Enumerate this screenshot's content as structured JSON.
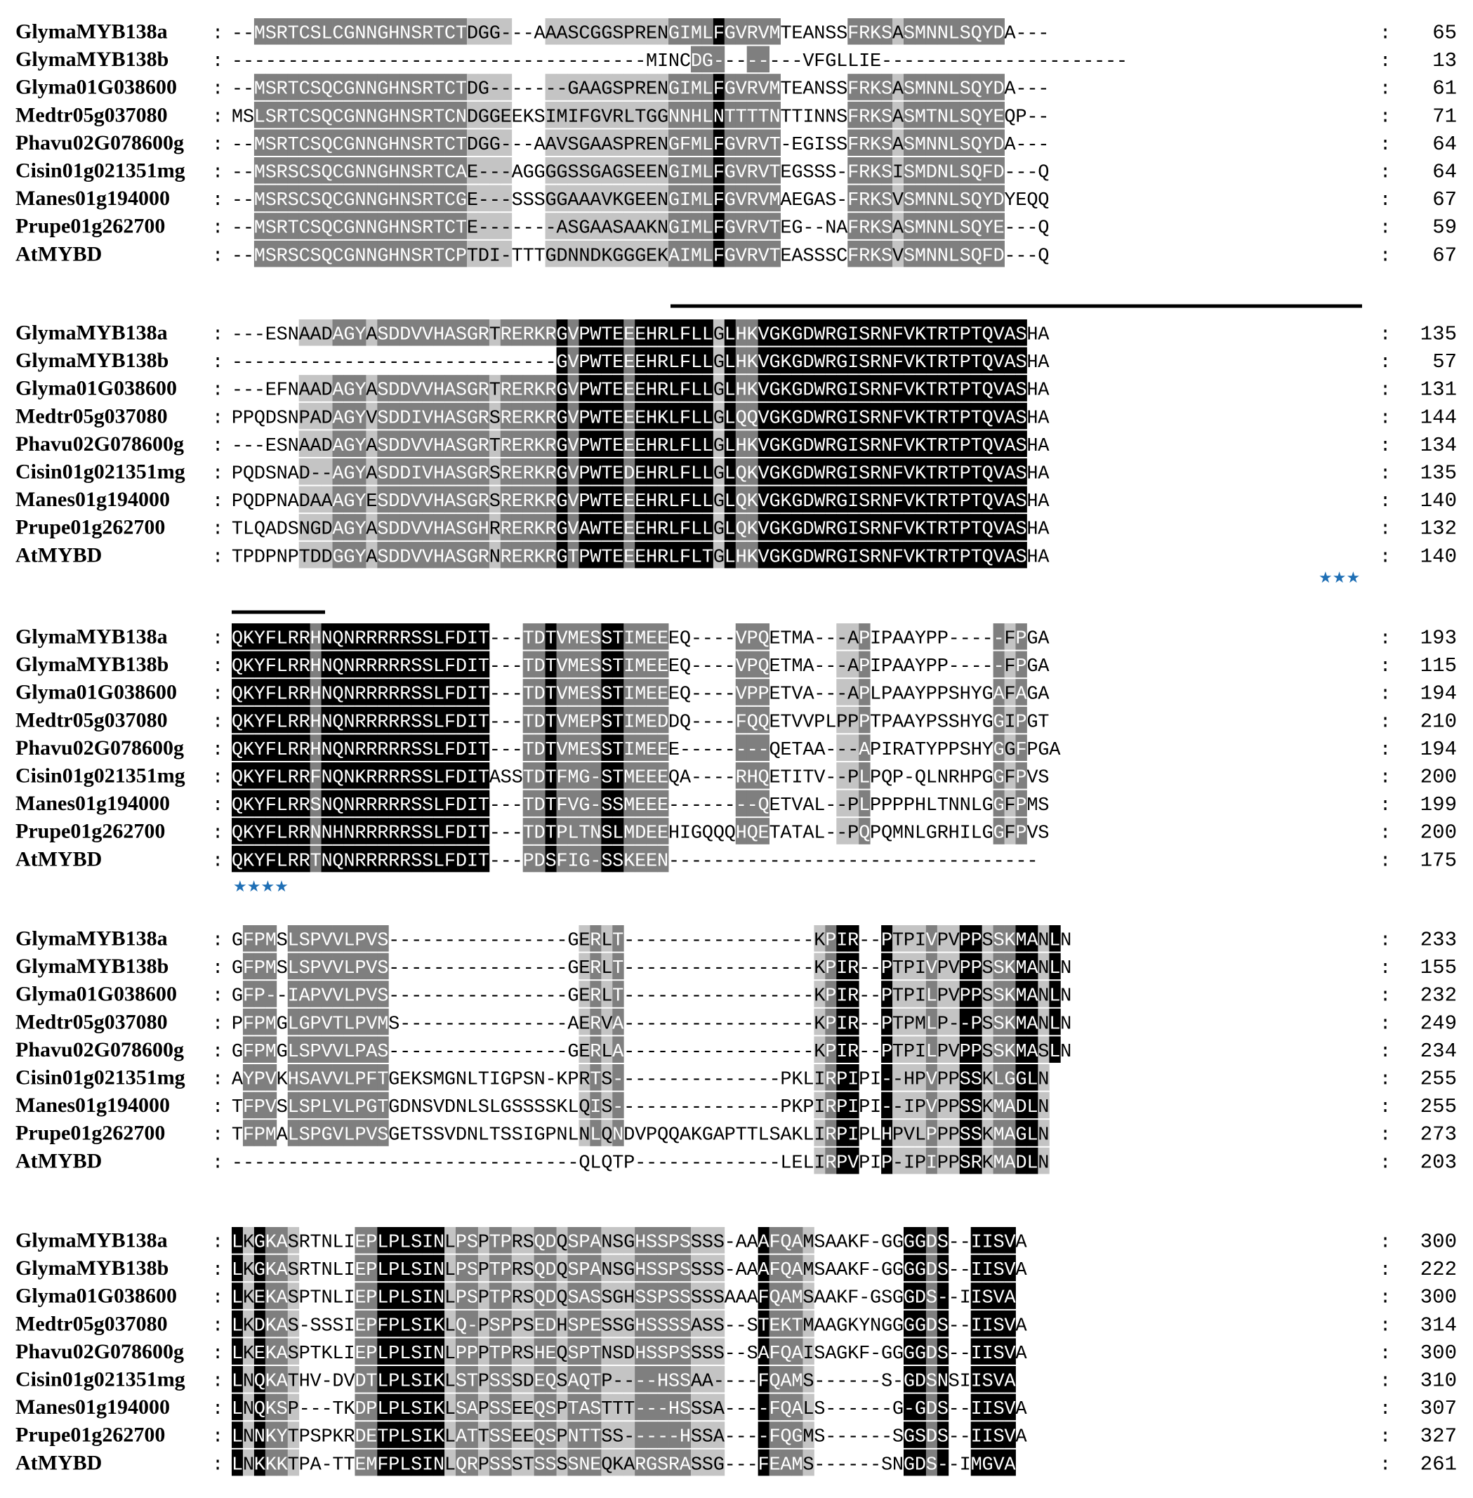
{
  "figure": "multiple-sequence-alignment",
  "colors": {
    "c0": "#ffffff",
    "c1": "#c4c4c4",
    "c2": "#7f7f7f",
    "c3": "#000000",
    "star": "#1f6fb5",
    "bar": "#000000"
  },
  "blocks": [
    {
      "start_col": 0,
      "rows": [
        {
          "name": "GlymaMYB138a",
          "seq": "--MSRTCSLCGNNGHNSRTCTDGG---AAASCGGSPRENGIMLFGVRVMTEANSSFRKSASMNNLSQYDA---",
          "end": "65"
        },
        {
          "name": "GlymaMYB138b",
          "seq": "-------------------------------------MINCDG--------VFGLLIE----------------------",
          "end": "13"
        },
        {
          "name": "Glyma01G038600",
          "seq": "--MSRTCSQCGNNGHNSRTCTDG-------GAAGSPRENGIMLFGVRVMTEANSSFRKSASMNNLSQYDA---",
          "end": "61"
        },
        {
          "name": "Medtr05g037080",
          "seq": "MSLSRTCSQCGNNGHNSRTCNDGGEEKSIMIFGVRLTGGNNHLNTTTTNTTINNSFRKSASMTNLSQYEQP--",
          "end": "71"
        },
        {
          "name": "Phavu02G078600g",
          "seq": "--MSRTCSQCGNNGHNSRTCTDGG---AAVSGAASPRENGFMLFGVRVT-EGISSFRKSASMNNLSQYDA---",
          "end": "64"
        },
        {
          "name": "Cisin01g021351mg",
          "seq": "--MSRSCSQCGNNGHNSRTCAE---AGGGGSSGAGSEENGIMLFGVRVTEGSSS-FRKSISMDNLSQFD---Q",
          "end": "64"
        },
        {
          "name": "Manes01g194000",
          "seq": "--MSRSCSQCGNNGHNSRTCGE---SSSGGAAAVKGEENGIMLFGVRVMAEGAS-FRKSVSMNNLSQYDYEQQ",
          "end": "67"
        },
        {
          "name": "Prupe01g262700",
          "seq": "--MSRTCSQCGNNGHNSRTCTE-------ASGAASAAKNGIMLFGVRVTEG--NAFRKSASMNNLSQYE---Q",
          "end": "59"
        },
        {
          "name": "AtMYBD",
          "seq": "--MSRSCSQCGNNGHNSRTCPTDI-TTTGDNNDKGGGEKAIMLFGVRVTEASSSCFRKSVSMNNLSQFD---Q",
          "end": "67"
        }
      ],
      "shade": [
        "0022222222222222222221111000111111111112222322222000000222212222222220000",
        "0000000000000000000000000000000000000000022200220000000000000000000000000",
        "0022222222222222222221111000111111111112222322222000000222212222222220000",
        "0022222222222222222221111000111111111112222322222000000222212222222220000",
        "0022222222222222222221111000111111111112222322222000000222212222222220000",
        "0022222222222222222221111000111111111112222322222000000222212222222220000",
        "0022222222222222222221111000111111111112222322222000000222212222222220000",
        "0022222222222222222221111000111111111112222322222000000222212222222220000",
        "0022222222222222222221111000111111111112222322222000000222212222222220000"
      ]
    },
    {
      "start_col": 0,
      "rows": [
        {
          "name": "GlymaMYB138a",
          "seq": "---ESNAADAGYASDDVVHASGRTRERKRGVPWTEEEHRLFLLGLHKVGKGDWRGISRNFVKTRTPTQVASHA",
          "end": "135"
        },
        {
          "name": "GlymaMYB138b",
          "seq": "-----------------------------GVPWTEEEHRLFLLGLHKVGKGDWRGISRNFVKTRTPTQVASHA",
          "end": "57"
        },
        {
          "name": "Glyma01G038600",
          "seq": "---EFNAADAGYASDDVVHASGRTRERKRGVPWTEEEHRLFLLGLHKVGKGDWRGISRNFVKTRTPTQVASHA",
          "end": "131"
        },
        {
          "name": "Medtr05g037080",
          "seq": "PPQDSNPADAGYVSDDIVHASGRSRERKRGVPWTEEEHKLFLLGLQQVGKGDWRGISRNFVKTRTPTQVASHA",
          "end": "144"
        },
        {
          "name": "Phavu02G078600g",
          "seq": "---ESNAADAGYASDDVVHASGRTRERKRGVPWTEEEHRLFLLGLHKVGKGDWRGISRNFVKTRTPTQVASHA",
          "end": "134"
        },
        {
          "name": "Cisin01g021351mg",
          "seq": "PQDSNAD--AGYASDDIVHASGRSRERKRGVPWTEDEHRLFLLGLQKVGKGDWRGISRNFVKTRTPTQVASHA",
          "end": "135"
        },
        {
          "name": "Manes01g194000",
          "seq": "PQDPNADAAAGYESDDVVHASGRSRERKRGVPWTEEEHRLFLLGLQKVGKGDWRGISRNFVKTRTPTQVASHA",
          "end": "140"
        },
        {
          "name": "Prupe01g262700",
          "seq": "TLQADSNGDAGYASDDVVHASGHRRERKRGVAWTEEEHRLFLLGLQKVGKGDWRGISRNFVKTRTPTQVASHA",
          "end": "132"
        },
        {
          "name": "AtMYBD",
          "seq": "TPDPNPTDDGGYASDDVVHASGRNRERKRGTPWTEEEHRLFLTGLHKVGKGDWRGISRNFVKTRTPTQVASHA",
          "end": "140"
        }
      ],
      "shade": [
        "00000011122212222222222122222323333233333331322333333333333333333333333",
        "00000000000000000000000000000323333233333331322333333333333333333333333",
        "00000011122212222222222122222323333233333331322333333333333333333333333",
        "00000011122212222222222122222323333233333331322333333333333333333333333",
        "00000011122212222222222122222323333233333331322333333333333333333333333",
        "00000011122212222222222122222323333233333331322333333333333333333333333",
        "00000011122212222222222122222323333233333331322333333333333333333333333",
        "00000011122212222222222122222323333233333331322333333333333333333333333",
        "00000011122212222222222122222323333233333331322333333333333333333333333"
      ],
      "stars": {
        "text": "★★★"
      }
    },
    {
      "start_col": 0,
      "rows": [
        {
          "name": "GlymaMYB138a",
          "seq": "QKYFLRRHNQNRRRRRSSLFDIT---TDTVMESSTIMEEEQ----VPQETMA---APIPAAYPP-----FPGA",
          "end": "193"
        },
        {
          "name": "GlymaMYB138b",
          "seq": "QKYFLRRHNQNRRRRRSSLFDIT---TDTVMESSTIMEEEQ----VPQETMA---APIPAAYPP-----FPGA",
          "end": "115"
        },
        {
          "name": "Glyma01G038600",
          "seq": "QKYFLRRHNQNRRRRRSSLFDIT---TDTVMESSTIMEEEQ----VPPETVA---APLPAAYPPSHYGAFAGA",
          "end": "194"
        },
        {
          "name": "Medtr05g037080",
          "seq": "QKYFLRRHNQNRRRRRSSLFDIT---TDTVMEPSTIMEDDQ----FQQETVVPLPPPTPAAYPSSHYGGIPGT",
          "end": "210"
        },
        {
          "name": "Phavu02G078600g",
          "seq": "QKYFLRRHNQNRRRRRSSLFDIT---TDTVMESSTIMEEE--------QETAA---APIRATYPPSHYGGFPGA",
          "end": "194"
        },
        {
          "name": "Cisin01g021351mg",
          "seq": "QKYFLRRFNQNKRRRRSSLFDITASSTDTFMG-STMEEEQA----RHQETITV--PLPQP-QLNRHPGGFPVS",
          "end": "200"
        },
        {
          "name": "Manes01g194000",
          "seq": "QKYFLRRSNQNRRRRRSSLFDIT---TDTFVG-SSMEEE--------QETVAL--PLPPPPHLTNNLGGFPMS",
          "end": "199"
        },
        {
          "name": "Prupe01g262700",
          "seq": "QKYFLRRNNHNRRRRRSSLFDIT---TDTPLTNSLMDEEHIGQQQHQETATAL--PQPQMNLGRHILGGFPVS",
          "end": "200"
        },
        {
          "name": "AtMYBD",
          "seq": "QKYFLRRTNQNRRRRRSSLFDIT---PDSFIG-SSKEEN---------------------------------",
          "end": "175"
        }
      ],
      "shade": [
        "3333333233333333333333300022322223322220000002220000001120000000000021200",
        "3333333233333333333333300022322223322220000002220000001120000000000021200",
        "3333333233333333333333300022322223322220000002220000001120000000000021200",
        "3333333233333333333333300022322223322220000002220000001120000000000021200",
        "3333333233333333333333300022322223322220000002220000001120000000000021200",
        "3333333233333333333333300022322223322220000002220000001120000000000021200",
        "3333333233333333333333300022322223322220000002220000001120000000000021200",
        "3333333233333333333333300022322223322220000002220000001120000000000021200",
        "3333333233333333333333300022322223322220000000000000000000000000000000000"
      ],
      "stars": {
        "text": "★★★★"
      }
    },
    {
      "start_col": 0,
      "rows": [
        {
          "name": "GlymaMYB138a",
          "seq": "GFPMSLSPVVLPVS----------------GERLT-----------------KPIR--PTPIVPVPPSSKMANLN",
          "end": "233"
        },
        {
          "name": "GlymaMYB138b",
          "seq": "GFPMSLSPVVLPVS----------------GERLT-----------------KPIR--PTPIVPVPPSSKMANLN",
          "end": "155"
        },
        {
          "name": "Glyma01G038600",
          "seq": "GFP--IAPVVLPVS----------------GERLT-----------------KPIR--PTPILPVPPSSKMANLN",
          "end": "232"
        },
        {
          "name": "Medtr05g037080",
          "seq": "PFPMGLGPVTLPVMS---------------AERVA-----------------KPIR--PTPMLP--PSSKMANLN",
          "end": "249"
        },
        {
          "name": "Phavu02G078600g",
          "seq": "GFPMGLSPVVLPAS----------------GERLA-----------------KPIR--PTPILPVPPSSKMASLN",
          "end": "234"
        },
        {
          "name": "Cisin01g021351mg",
          "seq": "AYPVKHSAVVLPFTGEKSMGNLTIGPSN-KPRTS---------------PKLIRPIPI--HPVPPSSKLGGLN",
          "end": "255"
        },
        {
          "name": "Manes01g194000",
          "seq": "TFPVSLSPLVLPGTGDNSVDNLSLGSSSSKLQIS---------------PKPIRPIPI--IPVPPSSKMADLN",
          "end": "255"
        },
        {
          "name": "Prupe01g262700",
          "seq": "TFPMALSPGVLPVSGETSSVDNLTSSIGPNLNLQNDVPQQAKGAPTTLSAKLIRPIPLHPVLPPPSSKMAGLN",
          "end": "273"
        },
        {
          "name": "AtMYBD",
          "seq": "-------------------------------QLQTP-------------LELIRPVPIP-IPIPPSRKMADLN",
          "end": "203"
        }
      ],
      "shade": [
        "02220222222222000000000000000001212000000000000000001233003111211331223313",
        "02220222222222000000000000000001212000000000000000001233003111211331223313",
        "02220222222222000000000000000001212000000000000000001233003111211331223313",
        "02220222222222000000000000000001212000000000000000001233003111211331223313",
        "02220222222222000000000000000001212000000000000000001233003111211331223313",
        "02220222222222000000000000000001212000000000000000001233003111211331223313",
        "02220222222222000000000000000001212000000000000000001233003111211331223313",
        "02220222222222000000000000000001212000000000000000001233003111211331223313",
        "00000000000000000000000000000000000000000000000000001233003111211331223313"
      ]
    },
    {
      "start_col": 0,
      "rows": [
        {
          "name": "GlymaMYB138a",
          "seq": "LKGKASRTNLIEPLPLSINLPSPTPRSQDQSPANSGHSSPSSSS-AAAFQAMSAAKF-GGGGDS--IISVA",
          "end": "300"
        },
        {
          "name": "GlymaMYB138b",
          "seq": "LKGKASRTNLIEPLPLSINLPSPTPRSQDQSPANSGHSSPSSSS-AAAFQAMSAAKF-GGGGDS--IISVA",
          "end": "222"
        },
        {
          "name": "Glyma01G038600",
          "seq": "LKEKASPTNLIEPLPLSINLPSPTPRSQDQSASSGHSSPSSSSSAAAFQAMSAAKF-GSGGDS--IISVA",
          "end": "300"
        },
        {
          "name": "Medtr05g037080",
          "seq": "LKDKAS-SSSIEPFPLSIKLQ-PSPPSEDHSPESSGHSSSSASS--STEKTMAAGKYNGGGGDS--IISVA",
          "end": "314"
        },
        {
          "name": "Phavu02G078600g",
          "seq": "LKEKASPTKLIEPLPLSINLPPPTPRSHEQSPTNSDHSSPSSSS--SAFQAISAGKF-GGGGDS--IISVA",
          "end": "300"
        },
        {
          "name": "Cisin01g021351mg",
          "seq": "LNQKATHV-DVDTLPLSIKLSTPSSSDEQSAQTP----HSSAA----FQAMS------S-GDSNSIISVA",
          "end": "310"
        },
        {
          "name": "Manes01g194000",
          "seq": "LNQKSP---TKDPLPLSIKLSAPSSEEQSPTASTTT---HSSSA----FQALS------G-GDS--IISVA",
          "end": "307"
        },
        {
          "name": "Prupe01g262700",
          "seq": "LNNKYTPSPKRDETPLSIKLATTSSEEQSPNTTSS-----HSSA----FQGMS------SGSDS--IISVA",
          "end": "327"
        },
        {
          "name": "AtMYBD",
          "seq": "LNKKKTPA-TTEMFPLSINLQRPSSSTSSSSNEQKARGSRASSG---FEAMS------SNGDS--IMGVA",
          "end": "261"
        }
      ],
      "shade": [
        "3132210000022333333122122112212221112222211100032221000000003323003333",
        "3132210000022333333122122112212221112222211100032221000000003323003333",
        "3132210000022333333122122112212221112222211100032221000000003323003333",
        "3132210000022333333122122112212221112222211100032221000000003323003333",
        "3132210000022333333122122112212221112222211100032221000000003323003333",
        "3132210000022333333122122112212221112222211100032221000000003323003333",
        "3132210000022333333122122112212221112222211100032221000000003323003333",
        "3132210000022333333122122112212221112222211100032221000000003323003333",
        "3132210000022333333122122112212221112222211100032221000000003323003333"
      ]
    }
  ]
}
